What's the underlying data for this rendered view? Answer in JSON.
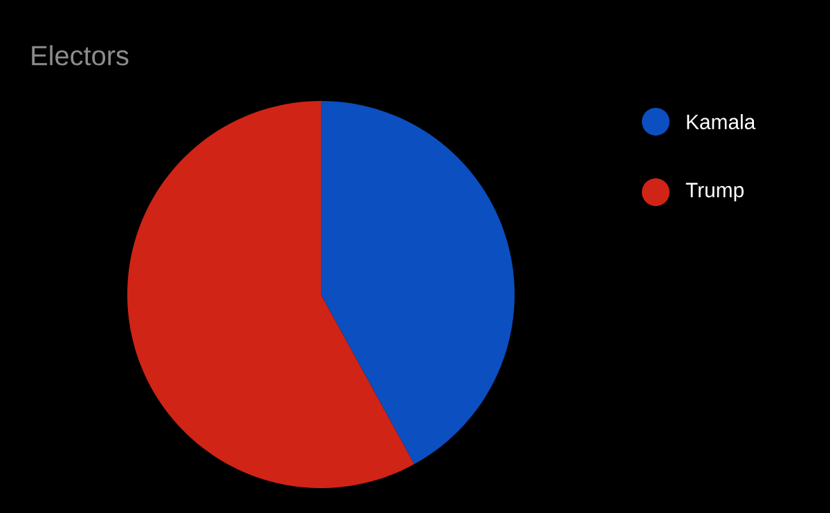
{
  "chart_data": {
    "type": "pie",
    "title": "Electors",
    "categories": [
      "Kamala",
      "Trump"
    ],
    "values": [
      42,
      58
    ],
    "colors": [
      "#0b4fc0",
      "#d02416"
    ],
    "legend": "top right"
  }
}
